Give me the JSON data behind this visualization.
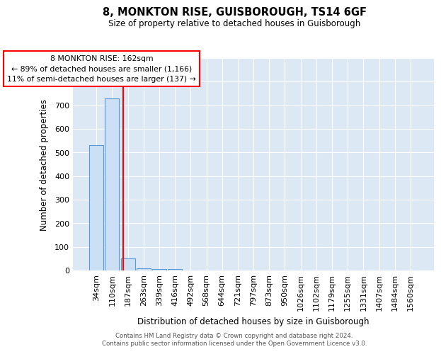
{
  "title": "8, MONKTON RISE, GUISBOROUGH, TS14 6GF",
  "subtitle": "Size of property relative to detached houses in Guisborough",
  "xlabel": "Distribution of detached houses by size in Guisborough",
  "ylabel": "Number of detached properties",
  "bar_labels": [
    "34sqm",
    "110sqm",
    "187sqm",
    "263sqm",
    "339sqm",
    "416sqm",
    "492sqm",
    "568sqm",
    "644sqm",
    "721sqm",
    "797sqm",
    "873sqm",
    "950sqm",
    "1026sqm",
    "1102sqm",
    "1179sqm",
    "1255sqm",
    "1331sqm",
    "1407sqm",
    "1484sqm",
    "1560sqm"
  ],
  "bar_values": [
    530,
    730,
    50,
    8,
    5,
    5,
    0,
    0,
    0,
    0,
    0,
    0,
    0,
    0,
    0,
    0,
    0,
    0,
    0,
    0,
    0
  ],
  "bar_color": "#cce0f5",
  "bar_edge_color": "#5b9bd5",
  "red_line_x": 1.68,
  "annotation_text": "8 MONKTON RISE: 162sqm\n← 89% of detached houses are smaller (1,166)\n11% of semi-detached houses are larger (137) →",
  "annotation_box_color": "white",
  "annotation_box_edge_color": "red",
  "ylim": [
    0,
    900
  ],
  "yticks": [
    0,
    100,
    200,
    300,
    400,
    500,
    600,
    700,
    800,
    900
  ],
  "bg_color": "#dde8f5",
  "grid_color": "white",
  "footer_line1": "Contains HM Land Registry data © Crown copyright and database right 2024.",
  "footer_line2": "Contains public sector information licensed under the Open Government Licence v3.0."
}
